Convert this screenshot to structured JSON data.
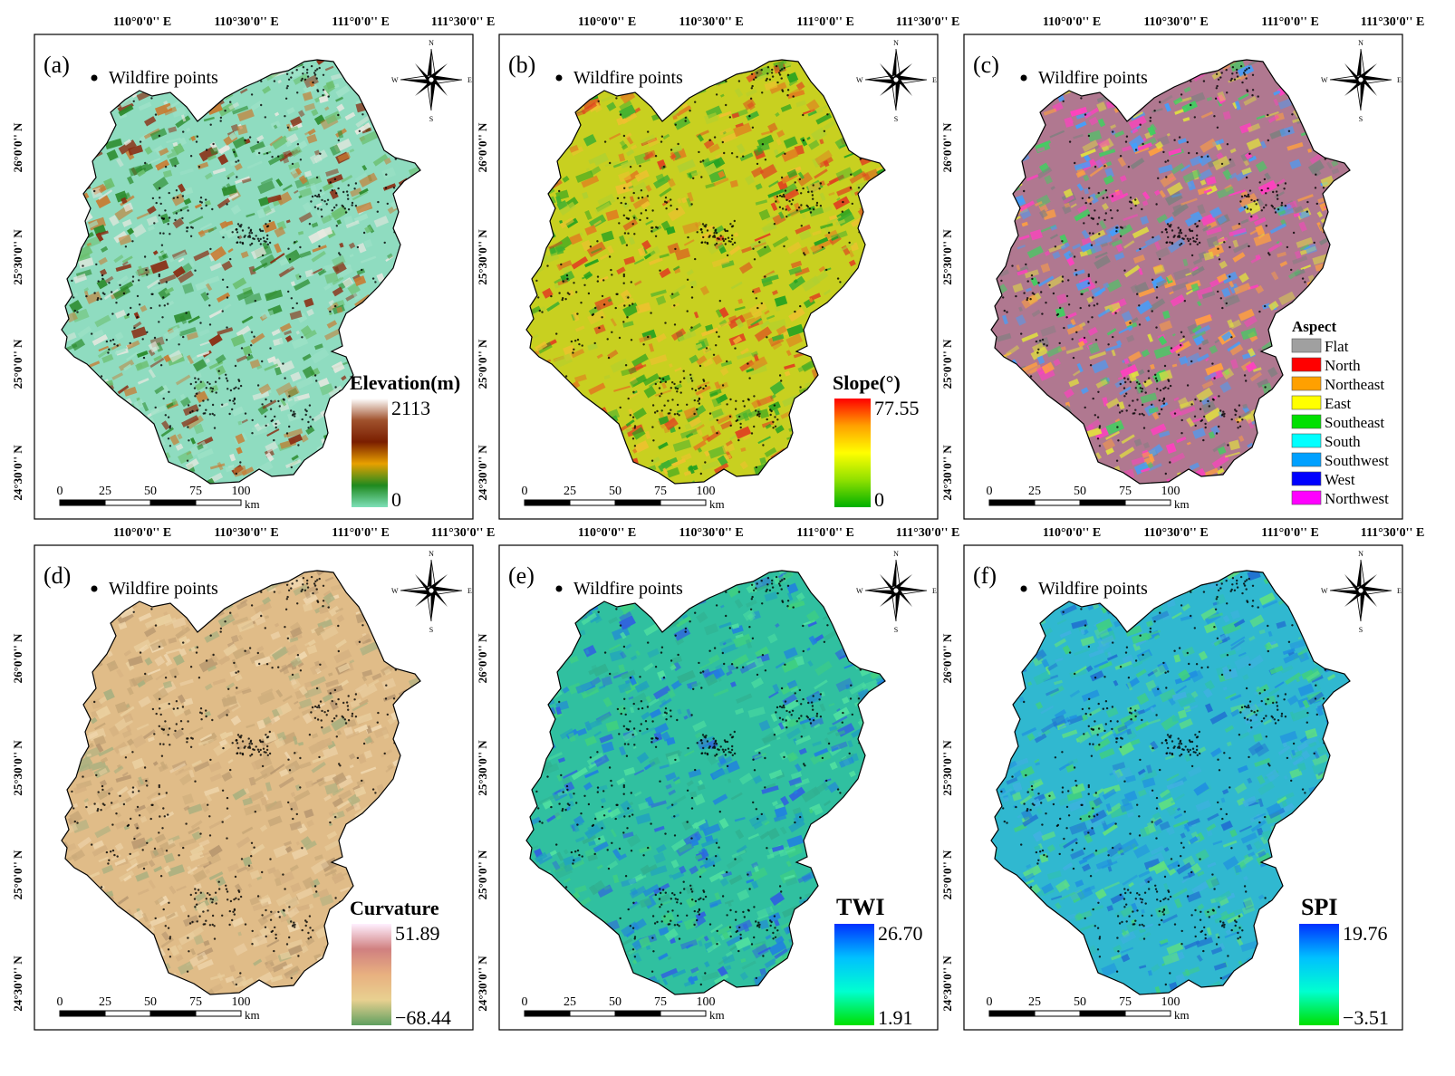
{
  "lon_labels": [
    "110°0'0'' E",
    "110°30'0'' E",
    "111°0'0'' E",
    "111°30'0'' E"
  ],
  "lat_labels": [
    "26°0'0'' N",
    "25°30'0'' N",
    "25°0'0'' N",
    "24°30'0'' N"
  ],
  "point_legend": "Wildfire points",
  "scale_bar": {
    "ticks": [
      "0",
      "25",
      "50",
      "75",
      "100"
    ],
    "unit": "km"
  },
  "compass": {
    "n": "N",
    "s": "S",
    "e": "E",
    "w": "W"
  },
  "panels": [
    {
      "id": "a",
      "label": "(a)",
      "legend": {
        "type": "gradient",
        "title": "Elevation(m)",
        "max": "2113",
        "min": "0",
        "stops": [
          "#ffffff",
          "#a0522d",
          "#7a1e00",
          "#e8a000",
          "#1f8a1f",
          "#7ee0b8"
        ]
      },
      "base": "#8fdcc0",
      "texture": [
        "#2a8a2a",
        "#8b2a10",
        "#c87a30",
        "#e8e8e0",
        "#6cc070",
        "#a0e2c8"
      ]
    },
    {
      "id": "b",
      "label": "(b)",
      "legend": {
        "type": "gradient",
        "title": "Slope(°)",
        "max": "77.55",
        "min": "0",
        "stops": [
          "#ff0000",
          "#ffa000",
          "#ffff00",
          "#90e000",
          "#00b000"
        ]
      },
      "base": "#c8d020",
      "texture": [
        "#20a020",
        "#e08020",
        "#f0c030",
        "#e04020",
        "#40b030",
        "#b0d030"
      ]
    },
    {
      "id": "c",
      "label": "(c)",
      "legend": {
        "type": "classes",
        "title": "Aspect",
        "items": [
          {
            "label": "Flat",
            "color": "#a0a0a0"
          },
          {
            "label": "North",
            "color": "#ff0000"
          },
          {
            "label": "Northeast",
            "color": "#ffa000"
          },
          {
            "label": "East",
            "color": "#ffff00"
          },
          {
            "label": "Southeast",
            "color": "#00e000"
          },
          {
            "label": "South",
            "color": "#00ffff"
          },
          {
            "label": "Southwest",
            "color": "#00a0ff"
          },
          {
            "label": "West",
            "color": "#0000ff"
          },
          {
            "label": "Northwest",
            "color": "#ff00ff"
          }
        ]
      },
      "base": "#b07890",
      "texture": [
        "#ff40c0",
        "#40d060",
        "#40a0ff",
        "#ffa040",
        "#e0e040",
        "#808080"
      ]
    },
    {
      "id": "d",
      "label": "(d)",
      "legend": {
        "type": "gradient",
        "title": "Curvature",
        "max": "51.89",
        "min": "−68.44",
        "stops": [
          "#fff0ff",
          "#d08080",
          "#e8b080",
          "#e8d090",
          "#60a060"
        ]
      },
      "base": "#e0bc88",
      "texture": [
        "#c8a878",
        "#b89870",
        "#ead0a0",
        "#d4b080",
        "#a8b080",
        "#f0d8b0"
      ]
    },
    {
      "id": "e",
      "label": "(e)",
      "legend": {
        "type": "gradient",
        "title": "TWI",
        "max": "26.70",
        "min": "1.91",
        "stops": [
          "#0030ff",
          "#00c0ff",
          "#00ffd0",
          "#00e000"
        ]
      },
      "base": "#30c0a0",
      "texture": [
        "#2080e0",
        "#40d080",
        "#20a0c0",
        "#50e0a0",
        "#3060e0",
        "#30b090"
      ]
    },
    {
      "id": "f",
      "label": "(f)",
      "legend": {
        "type": "gradient",
        "title": "SPI",
        "max": "19.76",
        "min": "−3.51",
        "stops": [
          "#0030ff",
          "#00c0ff",
          "#00ffd0",
          "#00e000"
        ]
      },
      "base": "#30b8d0",
      "texture": [
        "#40d080",
        "#2090e0",
        "#30c0b0",
        "#60e080",
        "#2070d0",
        "#40b0e0"
      ]
    }
  ]
}
